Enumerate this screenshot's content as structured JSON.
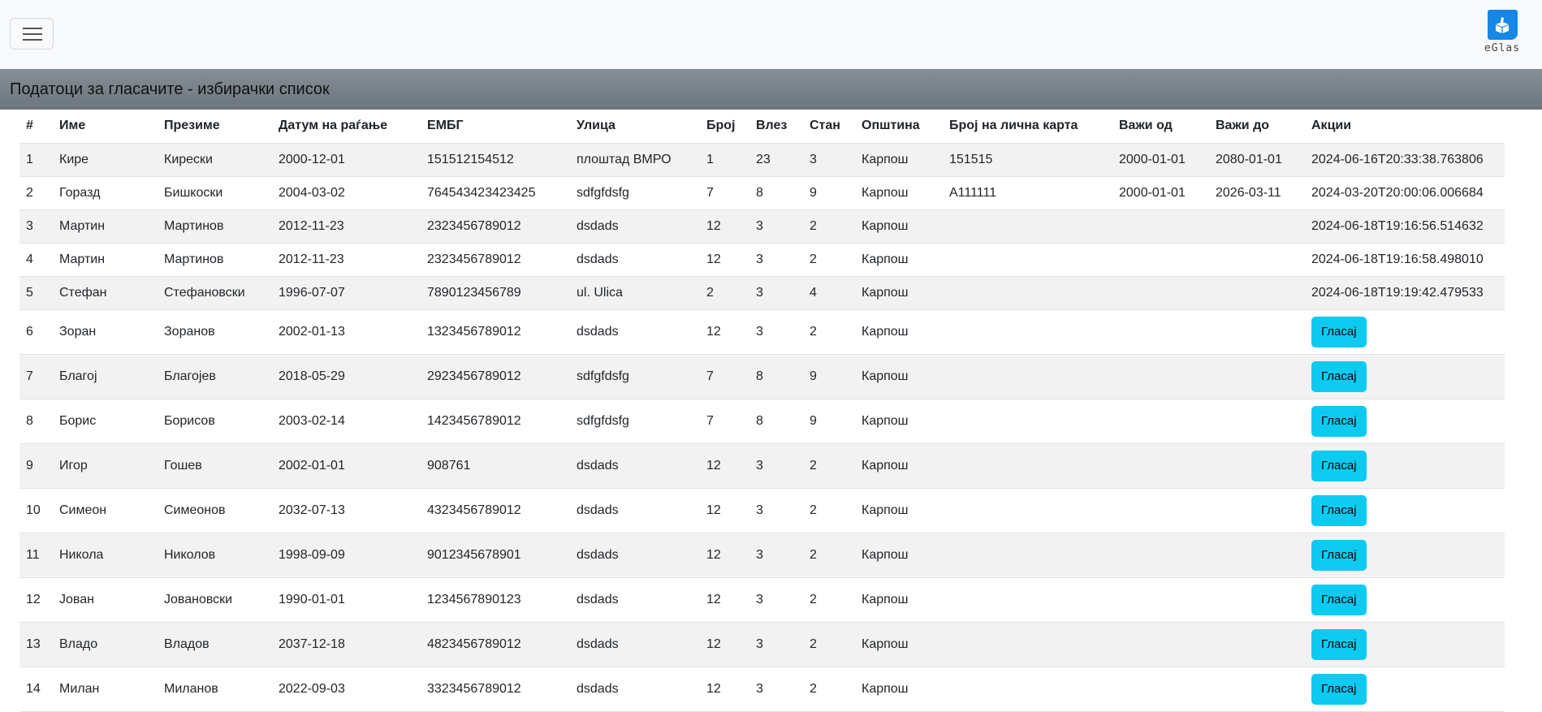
{
  "navbar": {
    "logo_text": "eGlas",
    "menu_icon": "hamburger-icon",
    "logo_icon": "ballot-box-icon",
    "brand_color": "#1787e6"
  },
  "title": "Податоци за гласачите - избирачки список",
  "table": {
    "headers": [
      "#",
      "Име",
      "Презиме",
      "Датум на раѓање",
      "ЕМБГ",
      "Улица",
      "Број",
      "Влез",
      "Стан",
      "Општина",
      "Број на лична карта",
      "Важи од",
      "Важи до",
      "Акции"
    ],
    "vote_label": "Гласај",
    "vote_color": "#0dcaf0",
    "rows": [
      {
        "cells": [
          "1",
          "Кире",
          "Кирески",
          "2000-12-01",
          "151512154512",
          "плоштад ВМРО",
          "1",
          "23",
          "3",
          "Карпош",
          "151515",
          "2000-01-01",
          "2080-01-01"
        ],
        "action": "2024-06-16T20:33:38.763806"
      },
      {
        "cells": [
          "2",
          "Горазд",
          "Бишкоски",
          "2004-03-02",
          "764543423423425",
          "sdfgfdsfg",
          "7",
          "8",
          "9",
          "Карпош",
          "A111111",
          "2000-01-01",
          "2026-03-11"
        ],
        "action": "2024-03-20T20:00:06.006684"
      },
      {
        "cells": [
          "3",
          "Мартин",
          "Мартинов",
          "2012-11-23",
          "2323456789012",
          "dsdads",
          "12",
          "3",
          "2",
          "Карпош",
          "",
          "",
          ""
        ],
        "action": "2024-06-18T19:16:56.514632"
      },
      {
        "cells": [
          "4",
          "Мартин",
          "Мартинов",
          "2012-11-23",
          "2323456789012",
          "dsdads",
          "12",
          "3",
          "2",
          "Карпош",
          "",
          "",
          ""
        ],
        "action": "2024-06-18T19:16:58.498010"
      },
      {
        "cells": [
          "5",
          "Стефан",
          "Стефановски",
          "1996-07-07",
          "7890123456789",
          "ul. Ulica",
          "2",
          "3",
          "4",
          "Карпош",
          "",
          "",
          ""
        ],
        "action": "2024-06-18T19:19:42.479533"
      },
      {
        "cells": [
          "6",
          "Зоран",
          "Зоранов",
          "2002-01-13",
          "1323456789012",
          "dsdads",
          "12",
          "3",
          "2",
          "Карпош",
          "",
          "",
          ""
        ],
        "action": null
      },
      {
        "cells": [
          "7",
          "Благој",
          "Благојев",
          "2018-05-29",
          "2923456789012",
          "sdfgfdsfg",
          "7",
          "8",
          "9",
          "Карпош",
          "",
          "",
          ""
        ],
        "action": null
      },
      {
        "cells": [
          "8",
          "Борис",
          "Борисов",
          "2003-02-14",
          "1423456789012",
          "sdfgfdsfg",
          "7",
          "8",
          "9",
          "Карпош",
          "",
          "",
          ""
        ],
        "action": null
      },
      {
        "cells": [
          "9",
          "Игор",
          "Гошев",
          "2002-01-01",
          "908761",
          "dsdads",
          "12",
          "3",
          "2",
          "Карпош",
          "",
          "",
          ""
        ],
        "action": null
      },
      {
        "cells": [
          "10",
          "Симеон",
          "Симеонов",
          "2032-07-13",
          "4323456789012",
          "dsdads",
          "12",
          "3",
          "2",
          "Карпош",
          "",
          "",
          ""
        ],
        "action": null
      },
      {
        "cells": [
          "11",
          "Никола",
          "Николов",
          "1998-09-09",
          "9012345678901",
          "dsdads",
          "12",
          "3",
          "2",
          "Карпош",
          "",
          "",
          ""
        ],
        "action": null
      },
      {
        "cells": [
          "12",
          "Јован",
          "Јовановски",
          "1990-01-01",
          "1234567890123",
          "dsdads",
          "12",
          "3",
          "2",
          "Карпош",
          "",
          "",
          ""
        ],
        "action": null
      },
      {
        "cells": [
          "13",
          "Владо",
          "Владов",
          "2037-12-18",
          "4823456789012",
          "dsdads",
          "12",
          "3",
          "2",
          "Карпош",
          "",
          "",
          ""
        ],
        "action": null
      },
      {
        "cells": [
          "14",
          "Милан",
          "Миланов",
          "2022-09-03",
          "3323456789012",
          "dsdads",
          "12",
          "3",
          "2",
          "Карпош",
          "",
          "",
          ""
        ],
        "action": null
      }
    ]
  }
}
